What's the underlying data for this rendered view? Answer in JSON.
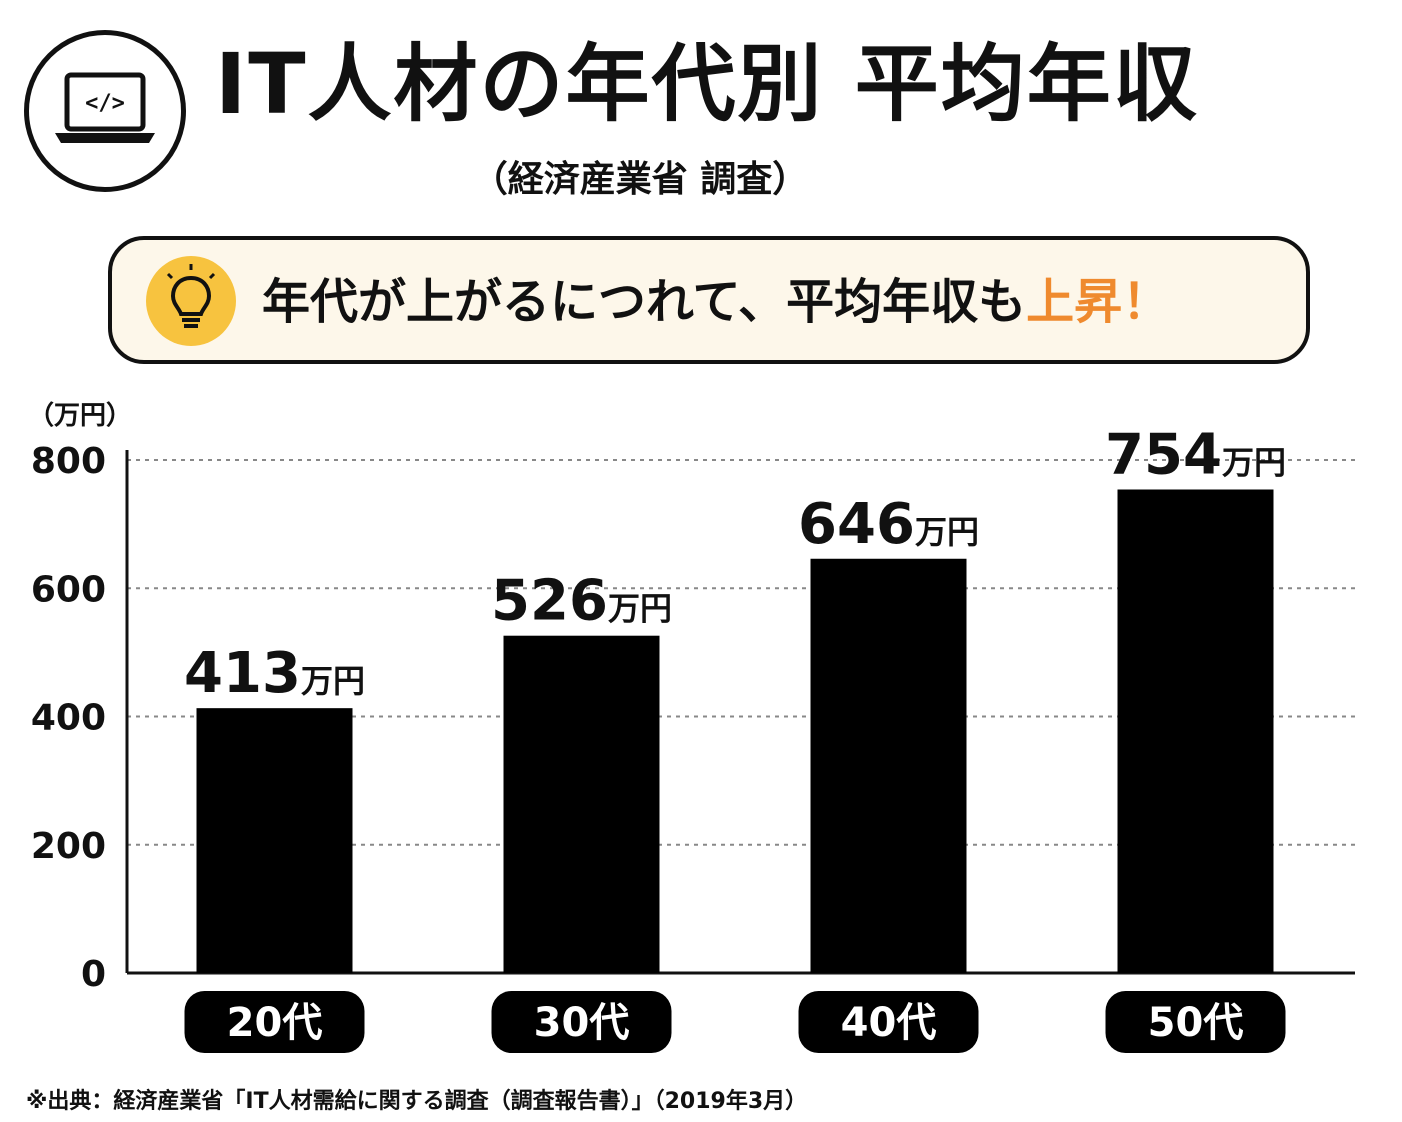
{
  "header": {
    "title": "IT人材の年代別 平均年収",
    "subtitle": "（経済産業省 調査）",
    "icon": "laptop-code-icon"
  },
  "callout": {
    "icon": "lightbulb-icon",
    "text_main": "年代が上がるにつれて、平均年収も",
    "text_highlight": "上昇！",
    "highlight_color": "#ef8a2e",
    "icon_color": "#f7c33f",
    "background_color": "#fdf7ea"
  },
  "chart_data": {
    "type": "bar",
    "unit_label": "（万円）",
    "categories": [
      "20代",
      "30代",
      "40代",
      "50代"
    ],
    "values": [
      413,
      526,
      646,
      754
    ],
    "value_suffix": "万円",
    "ylim": [
      0,
      800
    ],
    "yticks": [
      0,
      200,
      400,
      600,
      800
    ],
    "grid": true,
    "bar_color": "#000000"
  },
  "footnote": "※出典：経済産業省「IT人材需給に関する調査（調査報告書）」（2019年3月）"
}
